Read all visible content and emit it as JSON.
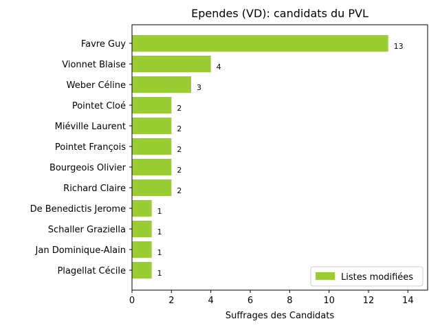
{
  "chart_data": {
    "type": "bar",
    "orientation": "horizontal",
    "title": "Ependes (VD): candidats du PVL",
    "xlabel": "Suffrages des Candidats",
    "ylabel": "",
    "categories": [
      "Favre Guy",
      "Vionnet Blaise",
      "Weber Céline",
      "Pointet Cloé",
      "Miéville Laurent",
      "Pointet François",
      "Bourgeois Olivier",
      "Richard Claire",
      "De Benedictis Jerome",
      "Schaller Graziella",
      "Jan Dominique-Alain",
      "Plagellat Cécile"
    ],
    "series": [
      {
        "name": "Listes modifiées",
        "color": "#9acd32",
        "values": [
          13,
          4,
          3,
          2,
          2,
          2,
          2,
          2,
          1,
          1,
          1,
          1
        ]
      }
    ],
    "xlim": [
      0,
      15
    ],
    "xticks": [
      0,
      2,
      4,
      6,
      8,
      10,
      12,
      14
    ],
    "grid": false,
    "legend_position": "bottom-right"
  }
}
